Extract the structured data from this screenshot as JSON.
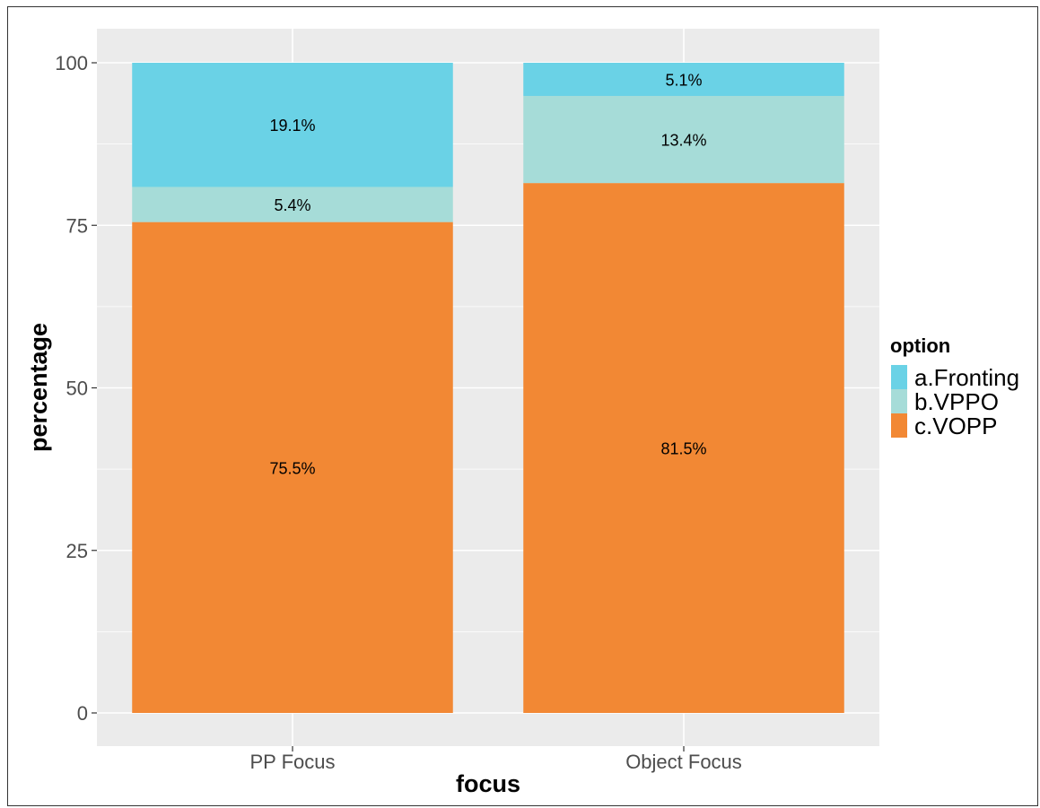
{
  "chart_data": {
    "type": "bar",
    "stacked": true,
    "title": "",
    "xlabel": "focus",
    "ylabel": "percentage",
    "ylim": [
      0,
      105
    ],
    "yticks": [
      0,
      25,
      50,
      75,
      100
    ],
    "grid": true,
    "legend_position": "right",
    "legend_title": "option",
    "categories": [
      "PP Focus",
      "Object Focus"
    ],
    "series": [
      {
        "name": "c.VOPP",
        "color": "#F28834",
        "values": [
          75.5,
          81.5
        ],
        "labels": [
          "75.5%",
          "81.5%"
        ]
      },
      {
        "name": "b.VPPO",
        "color": "#A6DCD8",
        "values": [
          5.4,
          13.4
        ],
        "labels": [
          "5.4%",
          "13.4%"
        ]
      },
      {
        "name": "a.Fronting",
        "color": "#6AD2E6",
        "values": [
          19.1,
          5.1
        ],
        "labels": [
          "19.1%",
          "5.1%"
        ]
      }
    ],
    "legend_order": [
      "a.Fronting",
      "b.VPPO",
      "c.VOPP"
    ],
    "panel_color": "#EBEBEB",
    "gridline_color": "#FFFFFF"
  }
}
